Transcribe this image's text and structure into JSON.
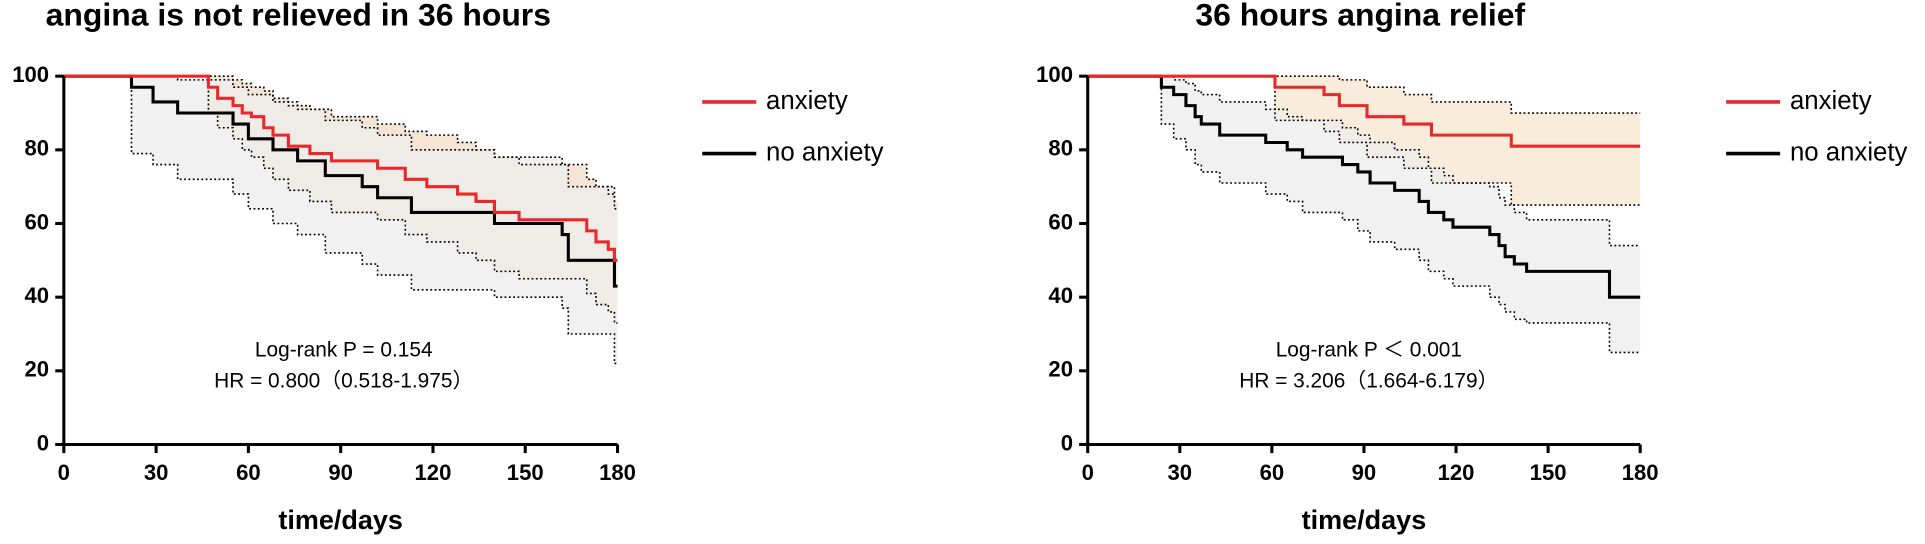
{
  "chart_data": [
    {
      "type": "step",
      "title": "angina is not relieved in 36 hours",
      "xlabel": "time/days",
      "annotations": [
        "Log-rank P = 0.154",
        "HR = 0.800（0.518-1.975）"
      ],
      "xlim": [
        0,
        180
      ],
      "ylim": [
        0,
        100
      ],
      "xticks": [
        0,
        30,
        60,
        90,
        120,
        150,
        180
      ],
      "yticks": [
        0,
        20,
        40,
        60,
        80,
        100
      ],
      "series": [
        {
          "name": "anxiety",
          "color": "#e8282b",
          "band_color": "#f3dcc6",
          "x": [
            0,
            47,
            50,
            55,
            58,
            61,
            65,
            68,
            73,
            80,
            87,
            102,
            111,
            118,
            128,
            134,
            140,
            148,
            170,
            173,
            177,
            179,
            180
          ],
          "values": [
            100,
            97,
            94,
            92,
            90,
            89,
            86,
            84,
            81,
            79,
            77,
            75,
            72,
            70,
            68,
            66,
            63,
            61,
            58,
            55,
            53,
            50,
            50
          ],
          "lower": [
            100,
            90,
            86,
            83,
            80,
            78,
            75,
            72,
            69,
            66,
            63,
            61,
            57,
            55,
            52,
            50,
            47,
            45,
            41,
            38,
            36,
            33,
            33
          ],
          "upper": [
            100,
            100,
            100,
            99,
            98,
            97,
            96,
            94,
            92,
            91,
            89,
            87,
            85,
            84,
            82,
            80,
            78,
            76,
            72,
            70,
            68,
            66,
            66
          ]
        },
        {
          "name": "no anxiety",
          "color": "#000000",
          "band_color": "#ececec",
          "x": [
            0,
            22,
            29,
            37,
            55,
            60,
            68,
            76,
            85,
            97,
            102,
            113,
            140,
            162,
            164,
            179,
            180
          ],
          "values": [
            100,
            97,
            93,
            90,
            87,
            83,
            80,
            77,
            73,
            70,
            67,
            63,
            60,
            57,
            50,
            43,
            43
          ],
          "lower": [
            100,
            79,
            76,
            72,
            68,
            64,
            60,
            57,
            52,
            49,
            46,
            42,
            40,
            37,
            30,
            22,
            22
          ],
          "upper": [
            100,
            100,
            100,
            99,
            97,
            95,
            93,
            91,
            88,
            86,
            84,
            80,
            78,
            76,
            70,
            64,
            64
          ]
        }
      ]
    },
    {
      "type": "step",
      "title": "36 hours angina relief",
      "xlabel": "time/days",
      "annotations": [
        "Log-rank P ＜ 0.001",
        "HR = 3.206（1.664-6.179）"
      ],
      "xlim": [
        0,
        180
      ],
      "ylim": [
        0,
        100
      ],
      "xticks": [
        0,
        30,
        60,
        90,
        120,
        150,
        180
      ],
      "yticks": [
        0,
        20,
        40,
        60,
        80,
        100
      ],
      "series": [
        {
          "name": "anxiety",
          "color": "#e8282b",
          "band_color": "#f7e6cf",
          "x": [
            0,
            61,
            77,
            82,
            91,
            103,
            112,
            138,
            180
          ],
          "values": [
            100,
            97,
            95,
            92,
            89,
            87,
            84,
            81,
            81
          ],
          "lower": [
            100,
            88,
            85,
            82,
            78,
            75,
            71,
            65,
            65
          ],
          "upper": [
            100,
            100,
            100,
            99,
            97,
            95,
            93,
            90,
            90
          ]
        },
        {
          "name": "no anxiety",
          "color": "#000000",
          "band_color": "#ececec",
          "x": [
            0,
            24,
            28,
            32,
            35,
            37,
            43,
            58,
            65,
            70,
            83,
            88,
            92,
            100,
            108,
            111,
            116,
            119,
            131,
            134,
            136,
            139,
            143,
            170,
            180
          ],
          "values": [
            100,
            97,
            95,
            92,
            89,
            87,
            84,
            82,
            80,
            78,
            76,
            74,
            71,
            69,
            66,
            63,
            61,
            59,
            57,
            54,
            51,
            49,
            47,
            40,
            40
          ],
          "lower": [
            100,
            87,
            83,
            80,
            76,
            74,
            71,
            68,
            66,
            63,
            61,
            58,
            55,
            53,
            50,
            47,
            45,
            43,
            40,
            38,
            36,
            34,
            33,
            25,
            25
          ],
          "upper": [
            100,
            100,
            99,
            98,
            96,
            95,
            93,
            91,
            89,
            88,
            86,
            84,
            82,
            80,
            78,
            75,
            73,
            71,
            70,
            67,
            65,
            63,
            61,
            54,
            54
          ]
        }
      ]
    }
  ]
}
